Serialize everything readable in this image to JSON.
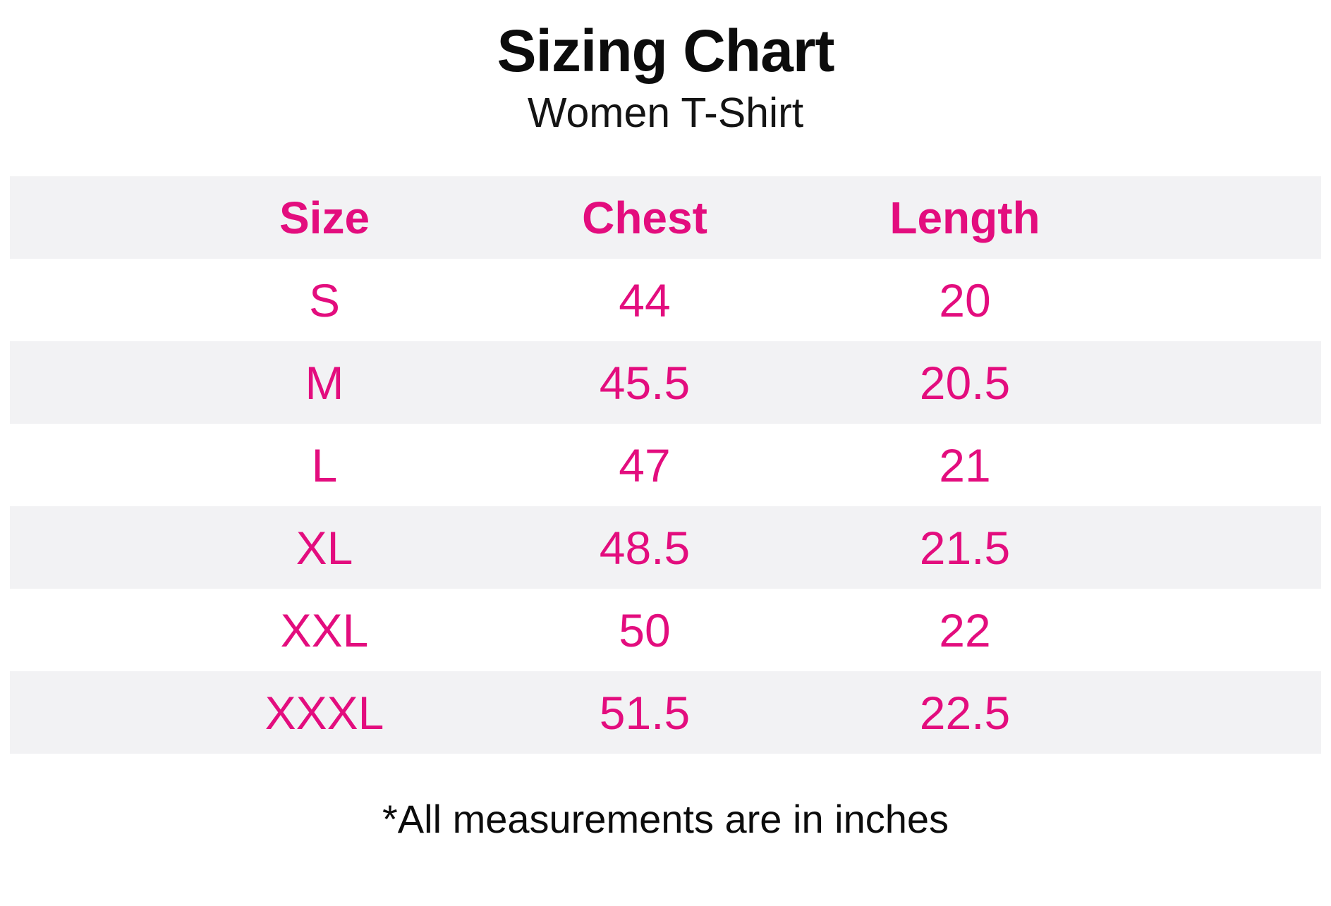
{
  "header": {
    "title": "Sizing Chart",
    "subtitle": "Women T-Shirt"
  },
  "table": {
    "columns": [
      "Size",
      "Chest",
      "Length"
    ],
    "rows": [
      {
        "size": "S",
        "chest": "44",
        "length": "20"
      },
      {
        "size": "M",
        "chest": "45.5",
        "length": "20.5"
      },
      {
        "size": "L",
        "chest": "47",
        "length": "21"
      },
      {
        "size": "XL",
        "chest": "48.5",
        "length": "21.5"
      },
      {
        "size": "XXL",
        "chest": "50",
        "length": "22"
      },
      {
        "size": "XXXL",
        "chest": "51.5",
        "length": "22.5"
      }
    ]
  },
  "footer": {
    "note": "*All measurements are in inches"
  },
  "colors": {
    "accent_pink": "#e30d7e",
    "row_gray": "#f2f2f4",
    "text_black": "#0c0c0c"
  },
  "chart_data": {
    "type": "table",
    "title": "Sizing Chart",
    "subtitle": "Women T-Shirt",
    "columns": [
      "Size",
      "Chest",
      "Length"
    ],
    "rows": [
      [
        "S",
        44,
        20
      ],
      [
        "M",
        45.5,
        20.5
      ],
      [
        "L",
        47,
        21
      ],
      [
        "XL",
        48.5,
        21.5
      ],
      [
        "XXL",
        50,
        22
      ],
      [
        "XXXL",
        51.5,
        22.5
      ]
    ],
    "units": "inches",
    "note": "*All measurements are in inches",
    "layout_hints": {
      "striped_rows": true,
      "stripe_color": "#f2f2f4",
      "header_text_color": "#e30d7e",
      "cell_text_color": "#e30d7e"
    }
  }
}
